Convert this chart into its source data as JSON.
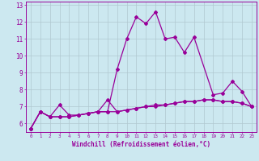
{
  "xlabel": "Windchill (Refroidissement éolien,°C)",
  "ylabel": "",
  "background_color": "#cce8f0",
  "line_color": "#990099",
  "grid_color": "#b0c8d0",
  "x_values": [
    0,
    1,
    2,
    3,
    4,
    5,
    6,
    7,
    8,
    9,
    10,
    11,
    12,
    13,
    14,
    15,
    16,
    17,
    18,
    19,
    20,
    21,
    22,
    23
  ],
  "series1": [
    5.7,
    6.7,
    6.4,
    7.1,
    6.5,
    6.5,
    6.6,
    6.7,
    6.7,
    9.2,
    11.0,
    12.3,
    11.9,
    12.6,
    11.0,
    11.1,
    10.2,
    11.1,
    null,
    7.7,
    7.8,
    8.5,
    7.9,
    7.0
  ],
  "series2": [
    5.7,
    6.7,
    6.4,
    6.4,
    6.4,
    6.5,
    6.6,
    6.7,
    7.4,
    6.7,
    6.8,
    6.9,
    7.0,
    7.1,
    7.1,
    7.2,
    7.3,
    7.3,
    7.4,
    7.4,
    7.3,
    7.3,
    7.2,
    7.0
  ],
  "series3": [
    5.7,
    6.7,
    6.4,
    6.4,
    6.4,
    6.5,
    6.6,
    6.7,
    6.7,
    6.7,
    6.8,
    6.9,
    7.0,
    7.0,
    7.1,
    7.2,
    7.3,
    7.3,
    7.4,
    7.4,
    7.3,
    7.3,
    7.2,
    7.0
  ],
  "ylim": [
    5.5,
    13.2
  ],
  "yticks": [
    6,
    7,
    8,
    9,
    10,
    11,
    12,
    13
  ],
  "xlim": [
    -0.5,
    23.5
  ],
  "marker": "D",
  "markersize": 2.0,
  "linewidth": 0.9
}
